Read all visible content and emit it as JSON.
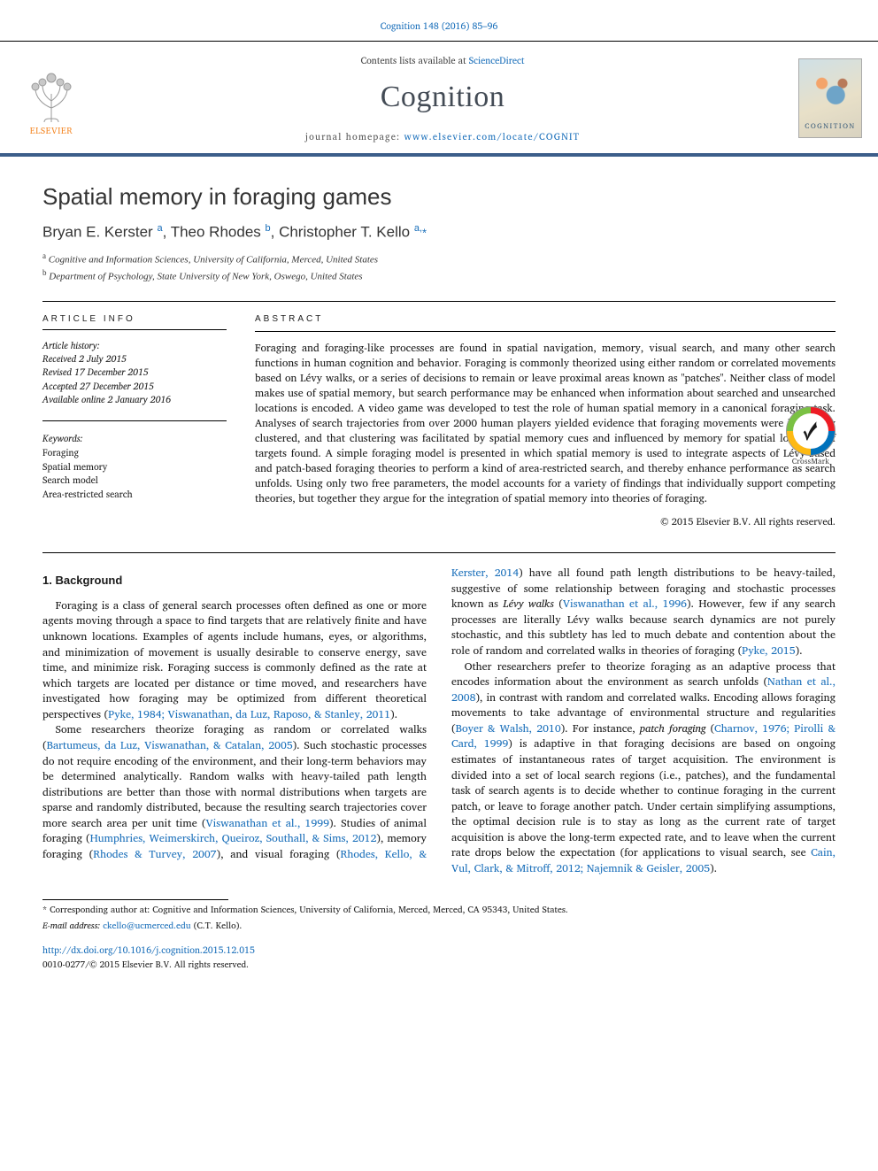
{
  "citation": "Cognition 148 (2016) 85–96",
  "masthead": {
    "contents_prefix": "Contents lists available at ",
    "contents_link": "ScienceDirect",
    "journal": "Cognition",
    "homepage_prefix": "journal homepage: ",
    "homepage_url": "www.elsevier.com/locate/COGNIT",
    "publisher_name": "ELSEVIER",
    "cover_label": "COGNITION"
  },
  "crossmark_label": "CrossMark",
  "article": {
    "title": "Spatial memory in foraging games",
    "authors_html": "Bryan E. Kerster <sup>a</sup>, Theo Rhodes <sup>b</sup>, Christopher T. Kello <sup>a,</sup><span class='star'>*</span>",
    "affiliations": [
      "a Cognitive and Information Sciences, University of California, Merced, United States",
      "b Department of Psychology, State University of New York, Oswego, United States"
    ]
  },
  "meta": {
    "info_heading": "ARTICLE INFO",
    "history_label": "Article history:",
    "history": [
      "Received 2 July 2015",
      "Revised 17 December 2015",
      "Accepted 27 December 2015",
      "Available online 2 January 2016"
    ],
    "keywords_label": "Keywords:",
    "keywords": [
      "Foraging",
      "Spatial memory",
      "Search model",
      "Area-restricted search"
    ]
  },
  "abstract": {
    "heading": "ABSTRACT",
    "text": "Foraging and foraging-like processes are found in spatial navigation, memory, visual search, and many other search functions in human cognition and behavior. Foraging is commonly theorized using either random or correlated movements based on Lévy walks, or a series of decisions to remain or leave proximal areas known as \"patches\". Neither class of model makes use of spatial memory, but search performance may be enhanced when information about searched and unsearched locations is encoded. A video game was developed to test the role of human spatial memory in a canonical foraging task. Analyses of search trajectories from over 2000 human players yielded evidence that foraging movements were inherently clustered, and that clustering was facilitated by spatial memory cues and influenced by memory for spatial locations of targets found. A simple foraging model is presented in which spatial memory is used to integrate aspects of Lévy-based and patch-based foraging theories to perform a kind of area-restricted search, and thereby enhance performance as search unfolds. Using only two free parameters, the model accounts for a variety of findings that individually support competing theories, but together they argue for the integration of spatial memory into theories of foraging.",
    "copyright": "© 2015 Elsevier B.V. All rights reserved."
  },
  "body": {
    "section_heading": "1. Background",
    "p1": "Foraging is a class of general search processes often defined as one or more agents moving through a space to find targets that are relatively finite and have unknown locations. Examples of agents include humans, eyes, or algorithms, and minimization of movement is usually desirable to conserve energy, save time, and minimize risk. Foraging success is commonly defined as the rate at which targets are located per distance or time moved, and researchers have investigated how foraging may be optimized from different theoretical perspectives (",
    "c1": "Pyke, 1984; Viswanathan, da Luz, Raposo, & Stanley, 2011",
    "p1b": ").",
    "p2a": "Some researchers theorize foraging as random or correlated walks (",
    "c2": "Bartumeus, da Luz, Viswanathan, & Catalan, 2005",
    "p2b": "). Such stochastic processes do not require encoding of the environment, and their long-term behaviors may be determined analytically. Random walks with heavy-tailed path length distributions are better than those with normal distributions when targets are sparse and randomly distributed, because the resulting search trajectories cover more search area per unit time (",
    "c3": "Viswanathan et al., 1999",
    "p2c": "). Studies of animal foraging (",
    "c4": "Humphries, Weimerskirch, Queiroz,",
    "p3a_cont": "Southall, & Sims, 2012",
    "p3b": "), memory foraging (",
    "c5": "Rhodes & Turvey, 2007",
    "p3c": "), and visual foraging (",
    "c6": "Rhodes, Kello, & Kerster, 2014",
    "p3d": ") have all found path length distributions to be heavy-tailed, suggestive of some relationship between foraging and stochastic processes known as ",
    "em1": "Lévy walks",
    "p3e": " (",
    "c7": "Viswanathan et al., 1996",
    "p3f": "). However, few if any search processes are literally Lévy walks because search dynamics are not purely stochastic, and this subtlety has led to much debate and contention about the role of random and correlated walks in theories of foraging (",
    "c8": "Pyke, 2015",
    "p3g": ").",
    "p4a": "Other researchers prefer to theorize foraging as an adaptive process that encodes information about the environment as search unfolds (",
    "c9": "Nathan et al., 2008",
    "p4b": "), in contrast with random and correlated walks. Encoding allows foraging movements to take advantage of environmental structure and regularities (",
    "c10": "Boyer & Walsh, 2010",
    "p4c": "). For instance, ",
    "em2": "patch foraging",
    "p4d": " (",
    "c11": "Charnov, 1976; Pirolli & Card, 1999",
    "p4e": ") is adaptive in that foraging decisions are based on ongoing estimates of instantaneous rates of target acquisition. The environment is divided into a set of local search regions (i.e., patches), and the fundamental task of search agents is to decide whether to continue foraging in the current patch, or leave to forage another patch. Under certain simplifying assumptions, the optimal decision rule is to stay as long as the current rate of target acquisition is above the long-term expected rate, and to leave when the current rate drops below the expectation (for applications to visual search, see ",
    "c12": "Cain, Vul, Clark, & Mitroff, 2012; Najemnik & Geisler, 2005",
    "p4f": ")."
  },
  "footer": {
    "corresponding": "* Corresponding author at: Cognitive and Information Sciences, University of California, Merced, Merced, CA 95343, United States.",
    "email_label": "E-mail address:",
    "email": "ckello@ucmerced.edu",
    "email_attrib": "(C.T. Kello).",
    "doi": "http://dx.doi.org/10.1016/j.cognition.2015.12.015",
    "issn_line": "0010-0277/© 2015 Elsevier B.V. All rights reserved."
  },
  "colors": {
    "link": "#1a6fba",
    "rule": "#3c5e8a",
    "elsevier": "#f48a2a"
  }
}
